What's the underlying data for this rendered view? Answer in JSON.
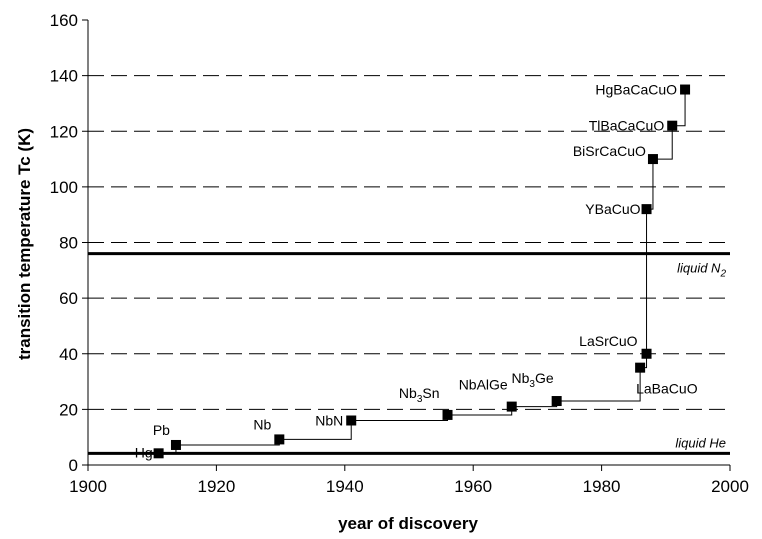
{
  "chart_data": {
    "type": "scatter",
    "title": "",
    "xlabel": "year of discovery",
    "ylabel": "transition temperature Tc (K)",
    "xlim": [
      1900,
      2000
    ],
    "ylim": [
      0,
      160
    ],
    "x_ticks": [
      1900,
      1920,
      1940,
      1960,
      1980,
      2000
    ],
    "y_ticks": [
      0,
      20,
      40,
      60,
      80,
      100,
      120,
      140,
      160
    ],
    "grid": "horizontal dashed",
    "connector": "step",
    "points": [
      {
        "label": "Hg",
        "label_sub": "",
        "label_rest": "",
        "x": 1911,
        "y": 4.2
      },
      {
        "label": "Pb",
        "label_sub": "",
        "label_rest": "",
        "x": 1913.7,
        "y": 7.2
      },
      {
        "label": "Nb",
        "label_sub": "",
        "label_rest": "",
        "x": 1929.8,
        "y": 9.2
      },
      {
        "label": "NbN",
        "label_sub": "",
        "label_rest": "",
        "x": 1941,
        "y": 16
      },
      {
        "label": "Nb",
        "label_sub": "3",
        "label_rest": "Sn",
        "x": 1956,
        "y": 18
      },
      {
        "label": "NbAlGe",
        "label_sub": "",
        "label_rest": "",
        "x": 1966,
        "y": 21
      },
      {
        "label": "Nb",
        "label_sub": "3",
        "label_rest": "Ge",
        "x": 1973,
        "y": 23
      },
      {
        "label": "LaBaCuO",
        "label_sub": "",
        "label_rest": "",
        "x": 1986,
        "y": 35
      },
      {
        "label": "LaSrCuO",
        "label_sub": "",
        "label_rest": "",
        "x": 1987,
        "y": 40
      },
      {
        "label": "YBaCuO",
        "label_sub": "",
        "label_rest": "",
        "x": 1987,
        "y": 92
      },
      {
        "label": "BiSrCaCuO",
        "label_sub": "",
        "label_rest": "",
        "x": 1988,
        "y": 110
      },
      {
        "label": "TlBaCaCuO",
        "label_sub": "",
        "label_rest": "",
        "x": 1991,
        "y": 122
      },
      {
        "label": "HgBaCaCuO",
        "label_sub": "",
        "label_rest": "",
        "x": 1993,
        "y": 135
      }
    ],
    "reference_lines": [
      {
        "label": "liquid N",
        "label_sub": "2",
        "y": 76
      },
      {
        "label": "liquid He",
        "label_sub": "",
        "y": 4.2
      }
    ]
  }
}
